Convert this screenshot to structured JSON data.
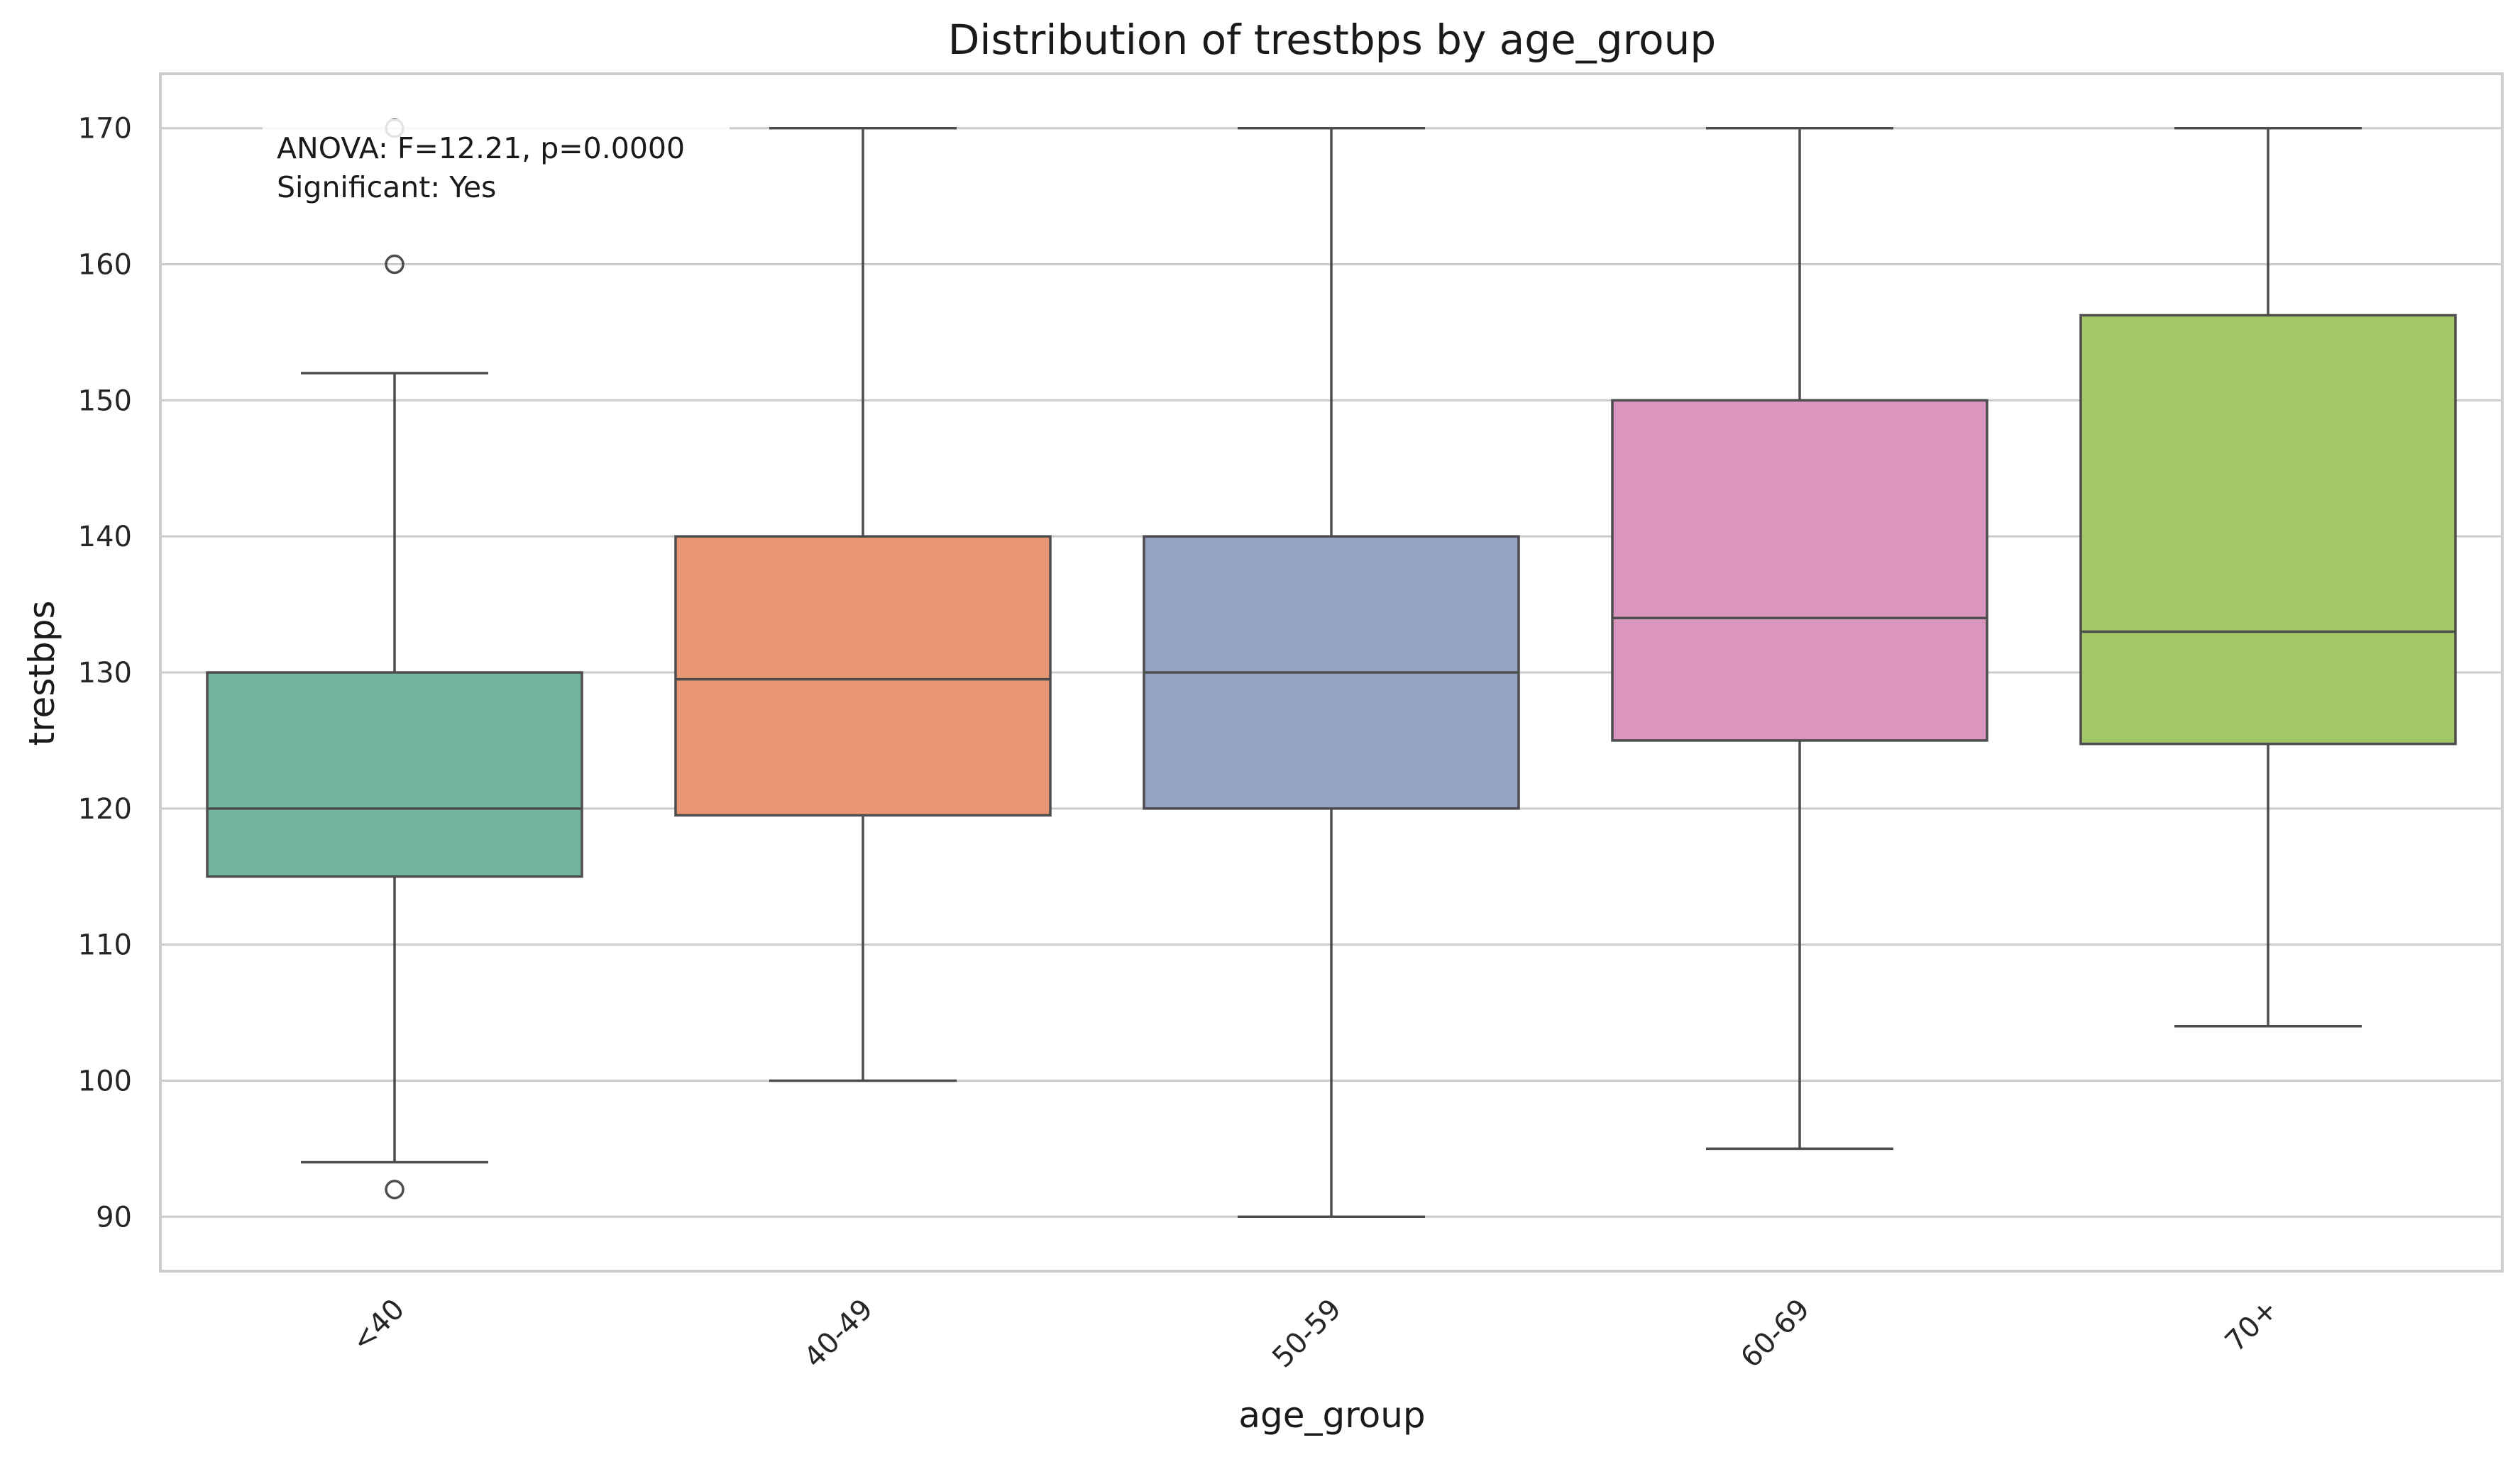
{
  "chart_data": {
    "type": "box",
    "title": "Distribution of trestbps by age_group",
    "xlabel": "age_group",
    "ylabel": "trestbps",
    "ylim": [
      86,
      174
    ],
    "yticks": [
      90,
      100,
      110,
      120,
      130,
      140,
      150,
      160,
      170
    ],
    "grid": true,
    "categories": [
      "<40",
      "40-49",
      "50-59",
      "60-69",
      "70+"
    ],
    "boxes": [
      {
        "category": "<40",
        "whisker_low": 94,
        "q1": 115,
        "median": 120,
        "q3": 130,
        "whisker_high": 152,
        "outliers": [
          92,
          160,
          170
        ],
        "color": "#72b6a0"
      },
      {
        "category": "40-49",
        "whisker_low": 100,
        "q1": 119.5,
        "median": 129.5,
        "q3": 140,
        "whisker_high": 170,
        "outliers": [],
        "color": "#e99675"
      },
      {
        "category": "50-59",
        "whisker_low": 90,
        "q1": 120,
        "median": 130,
        "q3": 140,
        "whisker_high": 170,
        "outliers": [],
        "color": "#95a3c3"
      },
      {
        "category": "60-69",
        "whisker_low": 95,
        "q1": 125,
        "median": 134,
        "q3": 150,
        "whisker_high": 170,
        "outliers": [],
        "color": "#db96c0"
      },
      {
        "category": "70+",
        "whisker_low": 104,
        "q1": 124.75,
        "median": 133,
        "q3": 156.25,
        "whisker_high": 170,
        "outliers": [],
        "color": "#a2c865"
      }
    ],
    "annotation": {
      "line1": "ANOVA: F=12.21, p=0.0000",
      "line2": "Significant: Yes"
    }
  }
}
